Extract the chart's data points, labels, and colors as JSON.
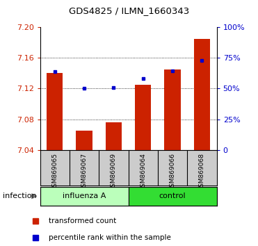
{
  "title": "GDS4825 / ILMN_1660343",
  "categories": [
    "GSM869065",
    "GSM869067",
    "GSM869069",
    "GSM869064",
    "GSM869066",
    "GSM869068"
  ],
  "bar_values": [
    7.14,
    7.065,
    7.076,
    7.125,
    7.145,
    7.185
  ],
  "bar_base": 7.04,
  "blue_values": [
    7.142,
    7.12,
    7.121,
    7.133,
    7.143,
    7.157
  ],
  "ylim": [
    7.04,
    7.2
  ],
  "yticks_left": [
    7.04,
    7.08,
    7.12,
    7.16,
    7.2
  ],
  "yticks_right": [
    0,
    25,
    50,
    75,
    100
  ],
  "right_ylim": [
    0,
    100
  ],
  "bar_color": "#cc2200",
  "blue_color": "#0000cc",
  "group1_label": "influenza A",
  "group2_label": "control",
  "group1_color": "#bbffbb",
  "group2_color": "#33dd33",
  "infection_label": "infection",
  "legend_bar_label": "transformed count",
  "legend_blue_label": "percentile rank within the sample",
  "tick_color_left": "#cc2200",
  "tick_color_right": "#0000cc",
  "background_xtick": "#cccccc",
  "figsize": [
    3.71,
    3.54
  ],
  "dpi": 100
}
